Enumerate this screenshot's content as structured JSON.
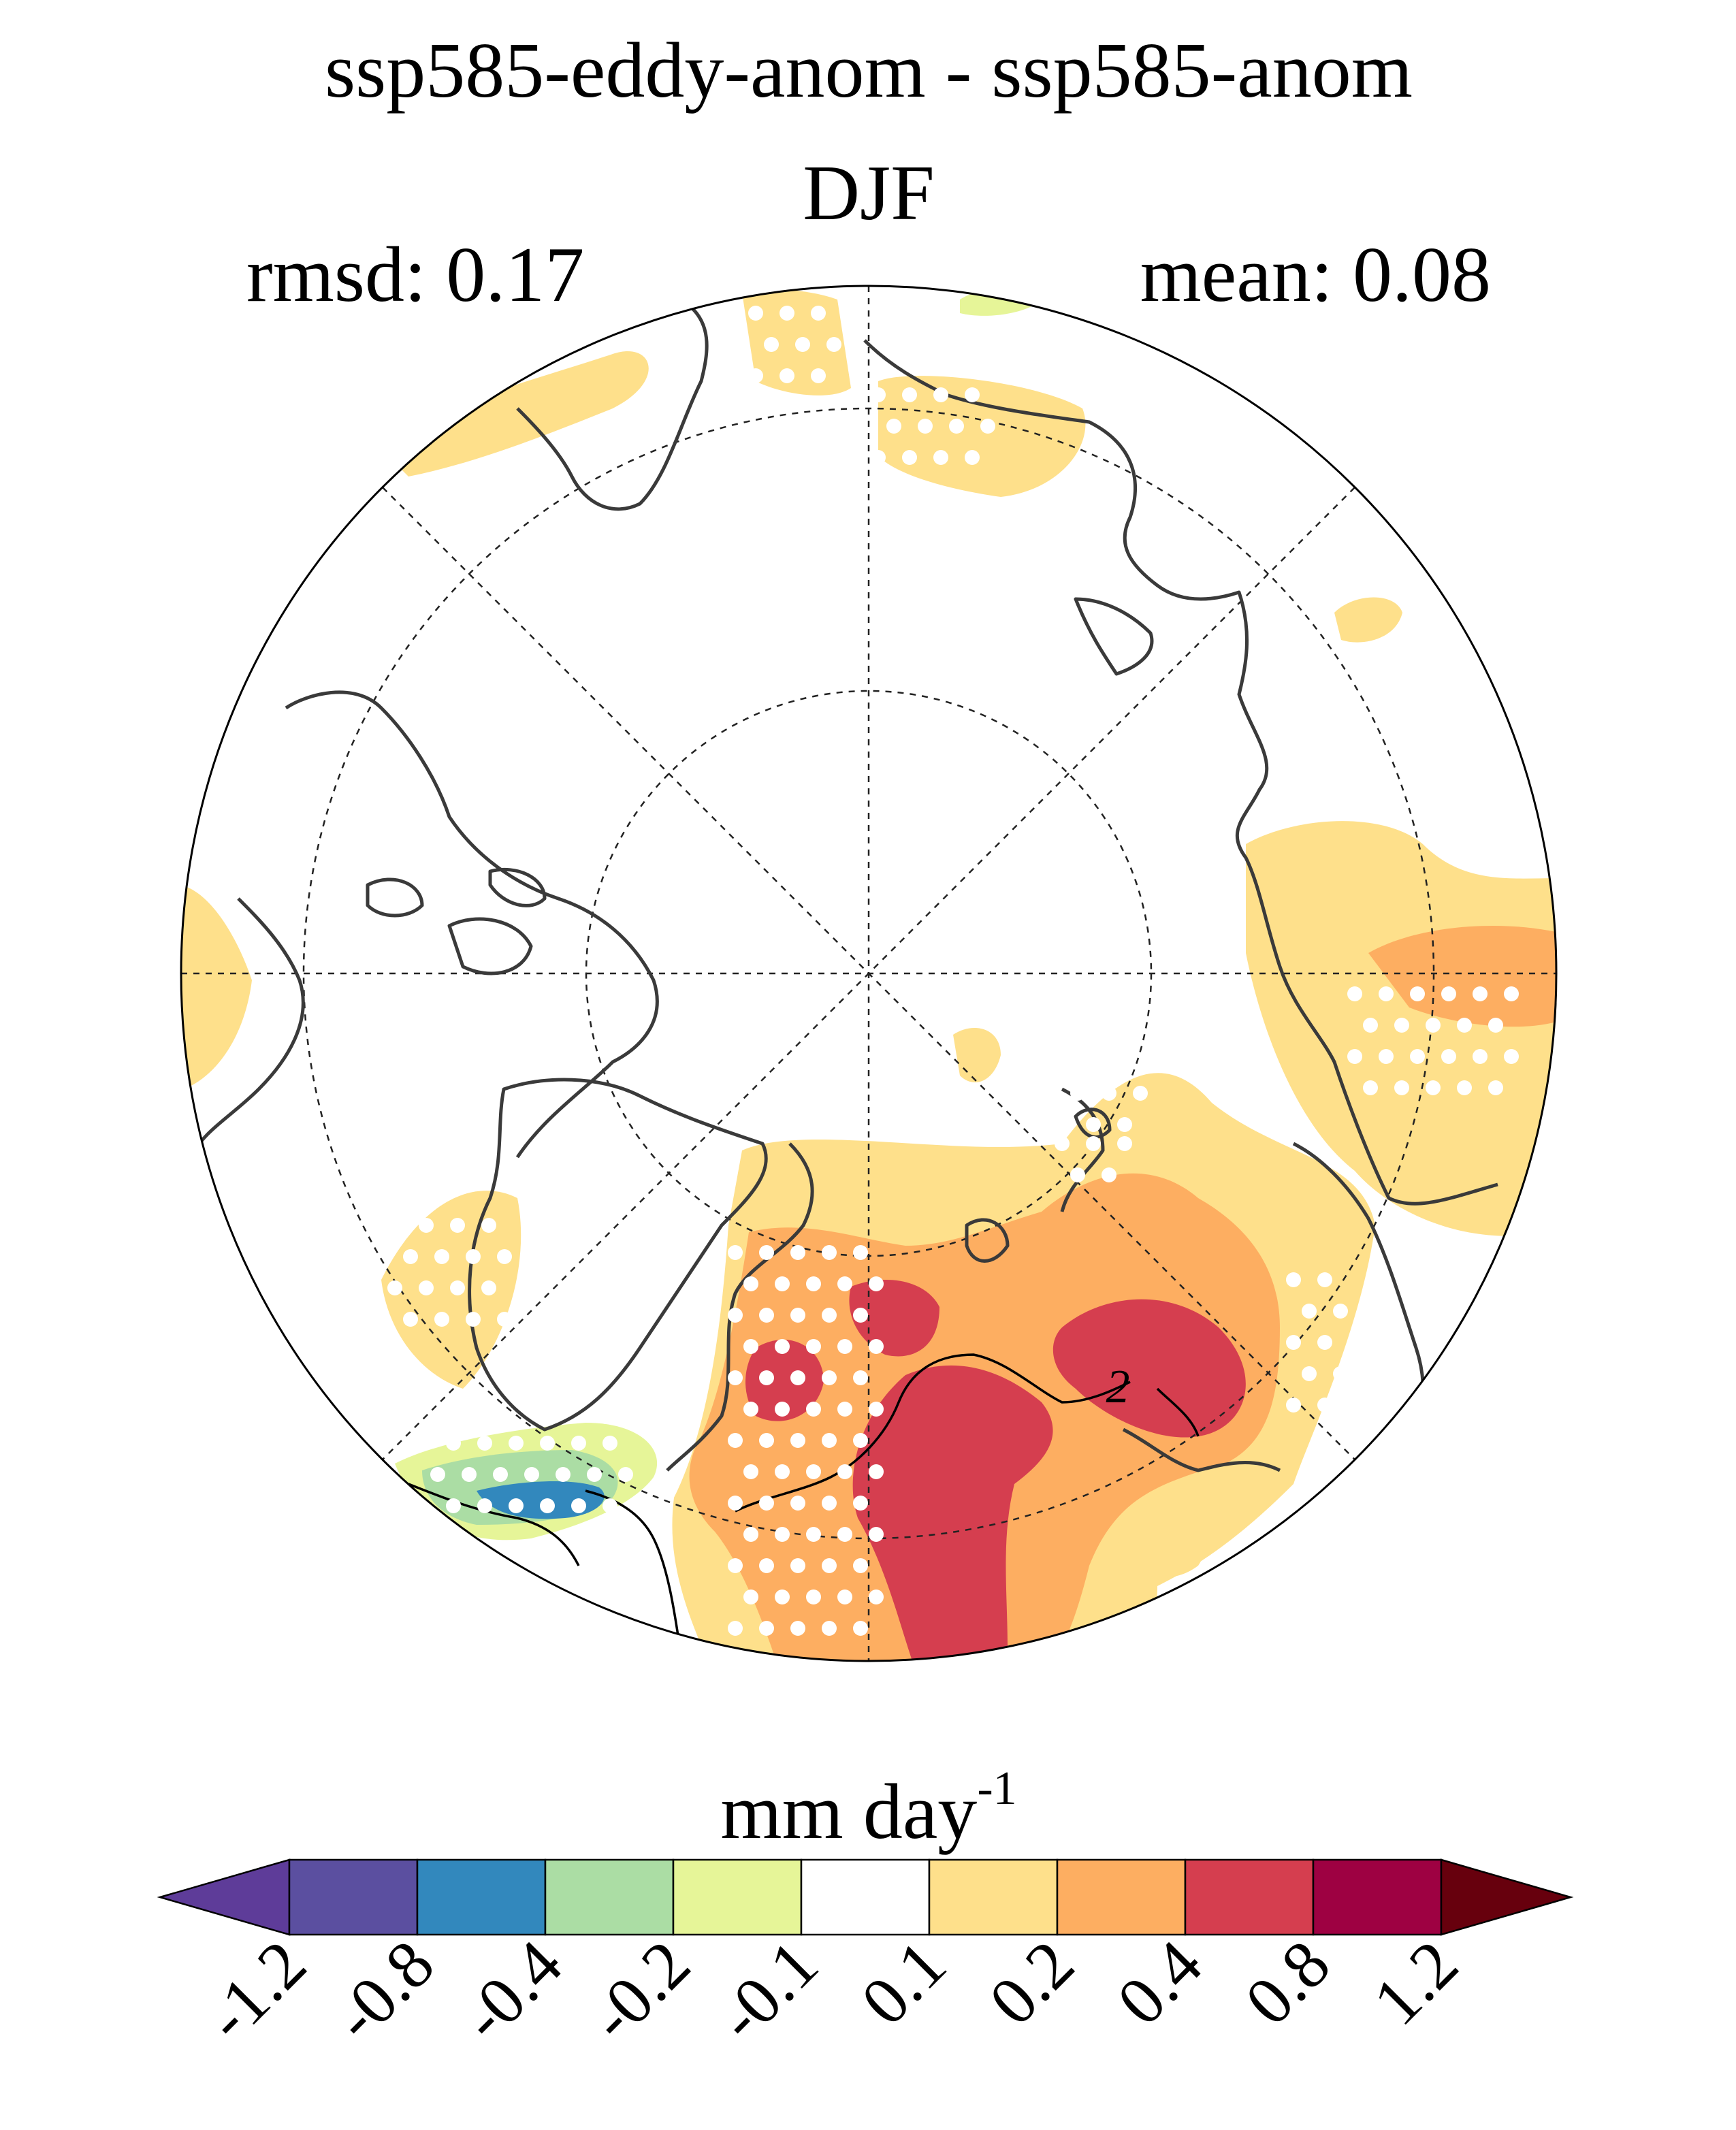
{
  "title": {
    "main": "ssp585-eddy-anom - ssp585-anom",
    "season": "DJF",
    "rmsd_label": "rmsd: 0.17",
    "mean_label": "mean: 0.08"
  },
  "map": {
    "projection": "north-polar-stereographic",
    "contour_label": "2"
  },
  "colorbar": {
    "units_main": "mm day",
    "units_exp": "-1",
    "levels": [
      "-1.2",
      "-0.8",
      "-0.4",
      "-0.2",
      "-0.1",
      "0.1",
      "0.2",
      "0.4",
      "0.8",
      "1.2"
    ],
    "colors": [
      "#5e3c99",
      "#5b4fa0",
      "#3288bd",
      "#abdda4",
      "#e6f598",
      "#ffffff",
      "#fee08b",
      "#fdae61",
      "#d53e4f",
      "#9e0142",
      "#67000d"
    ],
    "extend": "both"
  },
  "colors": {
    "light_orange": "#fee08b",
    "orange": "#fdae61",
    "red": "#d53e4f",
    "green": "#abdda4",
    "yellow_green": "#e6f598",
    "blue": "#3288bd",
    "coastline": "#3a3a3a"
  }
}
